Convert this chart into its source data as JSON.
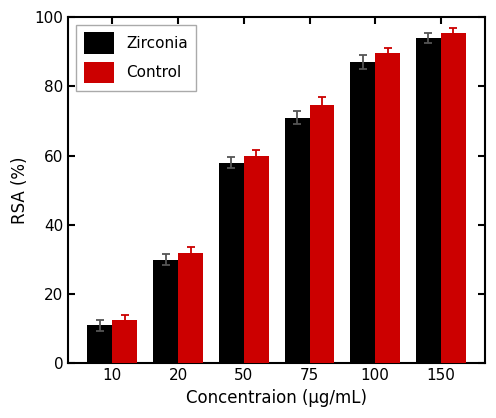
{
  "categories": [
    "10",
    "20",
    "50",
    "75",
    "100",
    "150"
  ],
  "zirconia_values": [
    11,
    30,
    58,
    71,
    87,
    94
  ],
  "control_values": [
    12.5,
    32,
    60,
    74.5,
    89.5,
    95.5
  ],
  "zirconia_errors": [
    1.5,
    1.5,
    1.5,
    2.0,
    2.0,
    1.5
  ],
  "control_errors": [
    1.5,
    1.5,
    1.5,
    2.5,
    1.5,
    1.5
  ],
  "zirconia_color": "#000000",
  "control_color": "#cc0000",
  "xlabel": "Concentraion (μg/mL)",
  "ylabel": "RSA (%)",
  "ylim": [
    0,
    100
  ],
  "yticks": [
    0,
    20,
    40,
    60,
    80,
    100
  ],
  "legend_labels": [
    "Zirconia",
    "Control"
  ],
  "bar_width": 0.38,
  "background_color": "#ffffff",
  "error_capsize": 3,
  "title": ""
}
